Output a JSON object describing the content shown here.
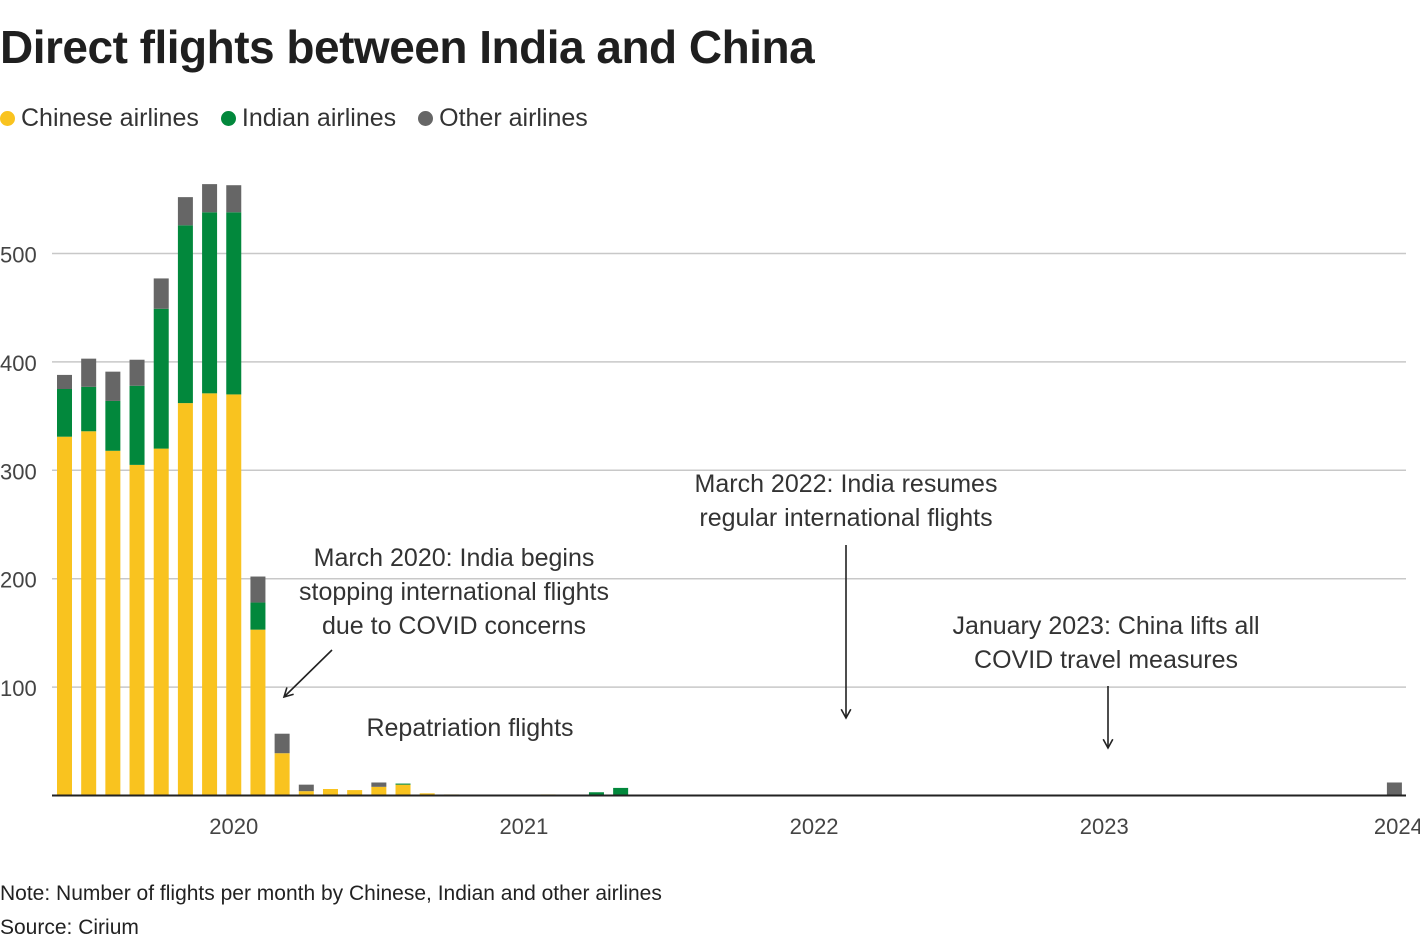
{
  "title": "Direct flights between India and China",
  "legend": [
    {
      "label": "Chinese airlines",
      "color": "#f9c31f"
    },
    {
      "label": "Indian airlines",
      "color": "#02883c"
    },
    {
      "label": "Other airlines",
      "color": "#666666"
    }
  ],
  "footer": {
    "note": "Note: Number of flights per month by Chinese, Indian and other airlines",
    "source": "Source: Cirium"
  },
  "chart_data": {
    "type": "bar",
    "stacked": true,
    "title": "Direct flights between India and China",
    "xlabel": "",
    "ylabel": "",
    "ylim": [
      0,
      560
    ],
    "yticks": [
      100,
      200,
      300,
      400,
      500
    ],
    "xticks": [
      {
        "label": "2020",
        "month_index": 7
      },
      {
        "label": "2021",
        "month_index": 19
      },
      {
        "label": "2022",
        "month_index": 31
      },
      {
        "label": "2023",
        "month_index": 43
      },
      {
        "label": "2024",
        "month_index": 55
      }
    ],
    "grid": true,
    "series": [
      {
        "name": "Chinese airlines",
        "color": "#f9c31f",
        "values": [
          331,
          336,
          318,
          305,
          320,
          362,
          371,
          370,
          153,
          39,
          4,
          6,
          5,
          8,
          10,
          2,
          1,
          0,
          0,
          0,
          1,
          0,
          0,
          0,
          0,
          0,
          0,
          0,
          0,
          0,
          0,
          0,
          0,
          0,
          0,
          0,
          0,
          0,
          0,
          0,
          0,
          0,
          0,
          0,
          0,
          0,
          0,
          0,
          0,
          0,
          0,
          0,
          0,
          0,
          0,
          0
        ]
      },
      {
        "name": "Indian airlines",
        "color": "#02883c",
        "values": [
          44,
          41,
          46,
          73,
          129,
          164,
          167,
          168,
          25,
          0,
          0,
          0,
          0,
          0,
          1,
          0,
          0,
          0,
          0,
          0,
          0,
          0,
          3,
          7,
          0,
          0,
          0,
          0,
          0,
          0,
          0,
          0,
          0,
          0,
          0,
          0,
          0,
          0,
          0,
          0,
          0,
          0,
          0,
          0,
          0,
          0,
          0,
          0,
          0,
          0,
          0,
          0,
          0,
          0,
          0,
          0
        ]
      },
      {
        "name": "Other airlines",
        "color": "#666666",
        "values": [
          13,
          26,
          27,
          24,
          28,
          26,
          26,
          25,
          24,
          18,
          6,
          0,
          0,
          4,
          0,
          0,
          0,
          0,
          0,
          0,
          0,
          0,
          0,
          0,
          0,
          0,
          0,
          0,
          0,
          0,
          0,
          0,
          0,
          0,
          0,
          0,
          0,
          0,
          0,
          0,
          0,
          0,
          0,
          0,
          0,
          0,
          0,
          0,
          0,
          0,
          0,
          0,
          0,
          0,
          0,
          12
        ]
      }
    ],
    "annotations": [
      {
        "name": "annotation-march-2020",
        "lines": [
          "March 2020: India begins",
          "stopping international flights",
          "due to COVID concerns"
        ]
      },
      {
        "name": "annotation-repatriation",
        "lines": [
          "Repatriation flights"
        ]
      },
      {
        "name": "annotation-march-2022",
        "lines": [
          "March 2022: India resumes",
          "regular international flights"
        ]
      },
      {
        "name": "annotation-january-2023",
        "lines": [
          "January 2023: China lifts all",
          "COVID travel measures"
        ]
      }
    ]
  }
}
